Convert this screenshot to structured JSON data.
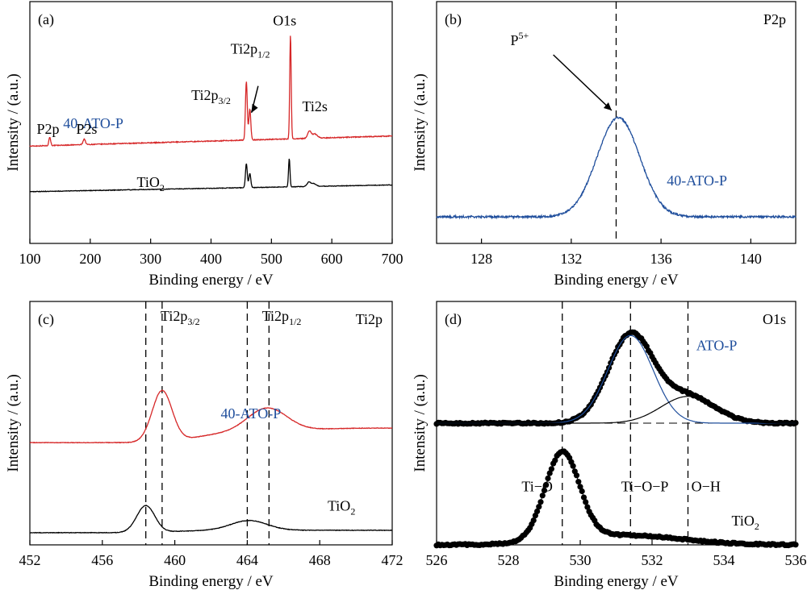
{
  "colors": {
    "red": "#d62728",
    "black": "#000000",
    "blue": "#1f4e9c",
    "blue_text": "#1f4e9c"
  },
  "chart_data": [
    {
      "panel": "(a)",
      "type": "line",
      "xlabel": "Binding energy / eV",
      "ylabel": "Intensity / (a.u.)",
      "xlim": [
        100,
        700
      ],
      "xticks": [
        100,
        200,
        300,
        400,
        500,
        600,
        700
      ],
      "xtick_labels": [
        "100",
        "200",
        "300",
        "400",
        "500",
        "600",
        "700"
      ],
      "series": [
        {
          "name": "40-ATO-P",
          "color": "red",
          "label_color": "blue_text",
          "label_pos": [
            205,
            0.82
          ],
          "base": 0.68,
          "slope": 0.00012,
          "noise": 0.003,
          "peaks": [
            [
              133,
              0.06,
              1.5
            ],
            [
              190,
              0.04,
              2
            ],
            [
              458.5,
              0.42,
              1.5
            ],
            [
              464.2,
              0.22,
              1.6
            ],
            [
              531.5,
              0.74,
              1.2
            ],
            [
              563,
              0.05,
              3
            ],
            [
              572,
              0.03,
              4
            ]
          ]
        },
        {
          "name": "TiO2",
          "name_main": "TiO",
          "name_sub": "2",
          "color": "black",
          "label_pos": [
            300,
            0.4
          ],
          "base": 0.36,
          "slope": 8e-05,
          "noise": 0.002,
          "peaks": [
            [
              458.5,
              0.17,
              1.5
            ],
            [
              464.2,
              0.1,
              1.6
            ],
            [
              529.5,
              0.2,
              1.2
            ],
            [
              562,
              0.03,
              3
            ],
            [
              570,
              0.02,
              4
            ]
          ]
        }
      ],
      "annotations": [
        {
          "main": "P2p",
          "sub": "",
          "pos": [
            130,
            0.78
          ]
        },
        {
          "main": "P2s",
          "sub": "",
          "pos": [
            194,
            0.78
          ]
        },
        {
          "main": "Ti2p",
          "sub": "3/2",
          "pos": [
            400,
            1.02
          ]
        },
        {
          "main": "Ti2p",
          "sub": "1/2",
          "pos": [
            465,
            1.35
          ]
        },
        {
          "main": "O1s",
          "sub": "",
          "pos": [
            522,
            1.55
          ]
        },
        {
          "main": "Ti2s",
          "sub": "",
          "pos": [
            572,
            0.94
          ]
        }
      ]
    },
    {
      "panel": "(b)",
      "type": "line",
      "xlabel": "Binding energy / eV",
      "ylabel": "Intensity / (a.u.)",
      "xlim": [
        126,
        142
      ],
      "xticks": [
        128,
        132,
        136,
        140
      ],
      "xtick_labels": [
        "128",
        "132",
        "136",
        "140"
      ],
      "title": "P2p",
      "series": [
        {
          "name": "40-ATO-P",
          "color": "blue",
          "label_color": "blue_text",
          "label_pos": [
            137.6,
            0.24
          ],
          "base": 0.11,
          "noise": 0.004,
          "peaks": [
            [
              134.1,
              0.41,
              0.95
            ]
          ]
        }
      ],
      "vline": 134.0,
      "annotation": {
        "main": "P",
        "sup": "5+",
        "pos": [
          129.7,
          0.82
        ]
      }
    },
    {
      "panel": "(c)",
      "type": "line",
      "xlabel": "Binding energy / eV",
      "ylabel": "Intensity / (a.u.)",
      "xlim": [
        452,
        472
      ],
      "xticks": [
        452,
        456,
        460,
        464,
        468,
        472
      ],
      "xtick_labels": [
        "452",
        "456",
        "460",
        "464",
        "468",
        "472"
      ],
      "title": "Ti2p",
      "series": [
        {
          "name": "40-ATO-P",
          "color": "red",
          "label_color": "blue_text",
          "label_pos": [
            464.2,
            0.52
          ],
          "base": 0.42,
          "noise": 0.001,
          "peaks": [
            [
              459.3,
              0.21,
              0.55
            ],
            [
              465.1,
              0.1,
              1.1
            ]
          ],
          "step": [
            [
              461,
              0.04,
              0.8
            ],
            [
              467,
              0.02,
              1
            ]
          ]
        },
        {
          "name": "TiO2",
          "name_main": "TiO",
          "name_sub": "2",
          "color": "black",
          "label_pos": [
            469.2,
            0.14
          ],
          "base": 0.05,
          "noise": 0.001,
          "peaks": [
            [
              458.4,
              0.11,
              0.5
            ],
            [
              464.1,
              0.04,
              1.0
            ]
          ],
          "step": [
            [
              460,
              0.01,
              0.8
            ]
          ]
        }
      ],
      "vlines": [
        458.4,
        459.3,
        464.0,
        465.2
      ],
      "annotations": [
        {
          "main": "Ti2p",
          "sub": "3/2",
          "pos": [
            460.3,
            0.92
          ]
        },
        {
          "main": "Ti2p",
          "sub": "1/2",
          "pos": [
            465.9,
            0.92
          ]
        }
      ]
    },
    {
      "panel": "(d)",
      "type": "scatter",
      "xlabel": "Binding energy / eV",
      "ylabel": "Intensity / (a.u.)",
      "xlim": [
        526,
        536
      ],
      "xticks": [
        526,
        528,
        530,
        532,
        534,
        536
      ],
      "xtick_labels": [
        "526",
        "528",
        "530",
        "532",
        "534",
        "536"
      ],
      "title": "O1s",
      "series": [
        {
          "name": "ATO-P",
          "color": "black",
          "label_color": "blue_text",
          "label_pos": [
            533.8,
            0.8
          ],
          "base": 0.5,
          "noise": 0.003,
          "fit_color": "blue",
          "peaks": [
            [
              531.4,
              0.36,
              0.63
            ],
            [
              533.0,
              0.11,
              0.75
            ]
          ]
        },
        {
          "name": "TiO2",
          "name_main": "TiO",
          "name_sub": "2",
          "color": "black",
          "label_pos": [
            534.6,
            0.08
          ],
          "base": 0.0,
          "noise": 0.003,
          "peaks": [
            [
              529.5,
              0.36,
              0.48
            ],
            [
              531.2,
              0.04,
              1.6
            ]
          ]
        }
      ],
      "vlines": [
        529.5,
        531.4,
        533.0
      ],
      "annotations": [
        {
          "text": "Ti−O",
          "pos": [
            528.8,
            0.22
          ]
        },
        {
          "text": "Ti−O−P",
          "pos": [
            531.8,
            0.22
          ]
        },
        {
          "text": "O−H",
          "pos": [
            533.5,
            0.22
          ]
        }
      ]
    }
  ]
}
